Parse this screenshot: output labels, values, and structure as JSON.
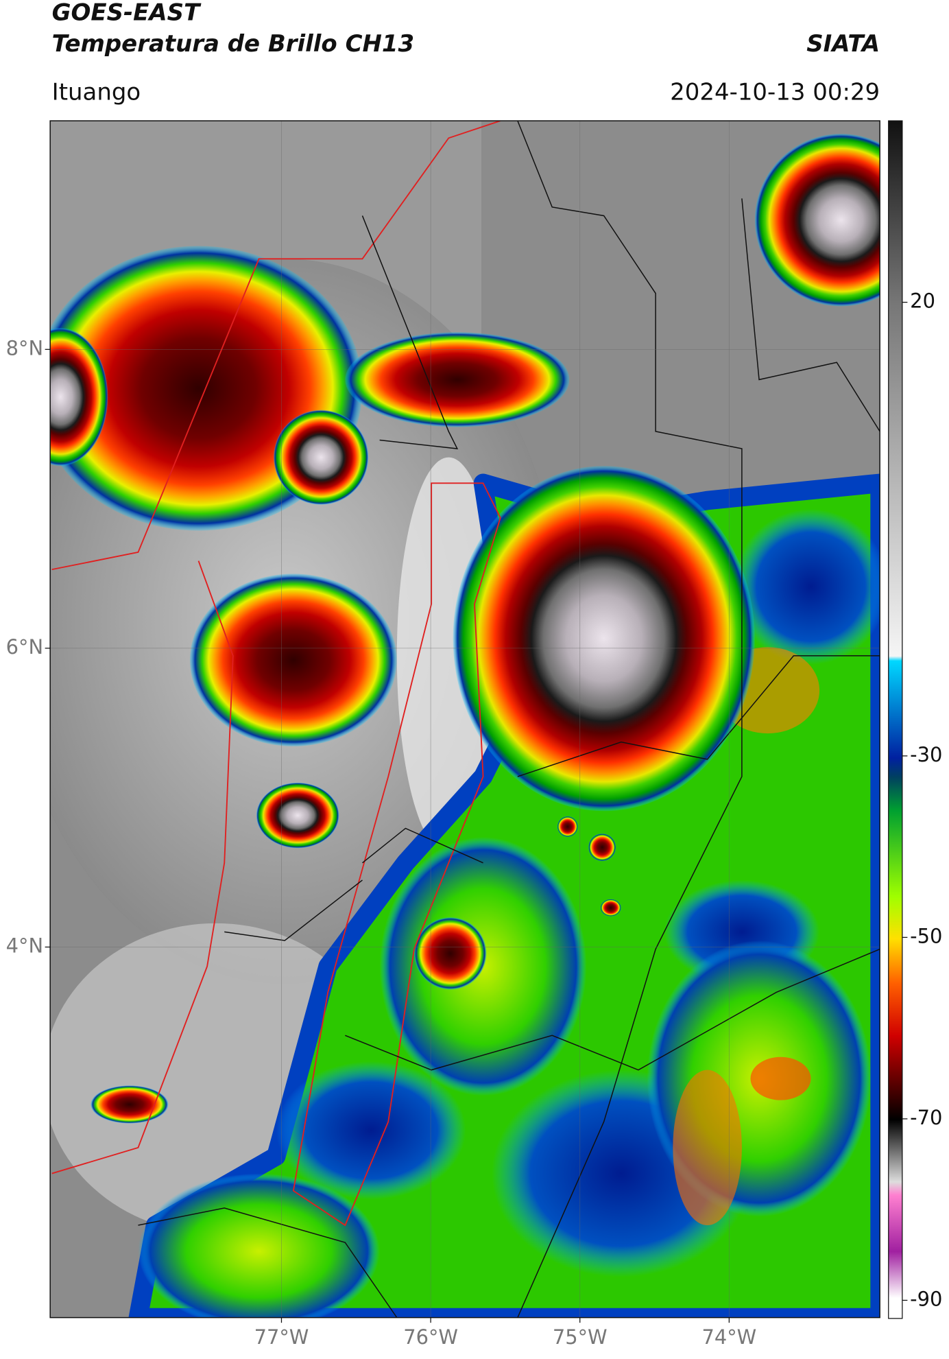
{
  "header": {
    "title": "GOES-EAST",
    "subtitle": "Temperatura de Brillo CH13",
    "brand": "SIATA",
    "location": "Ituango",
    "datetime": "2024-10-13 00:29"
  },
  "map": {
    "xlim": [
      -78.55,
      -72.99
    ],
    "ylim": [
      1.52,
      9.53
    ],
    "xticks": [
      {
        "value": -77,
        "label": "77°W"
      },
      {
        "value": -76,
        "label": "76°W"
      },
      {
        "value": -75,
        "label": "75°W"
      },
      {
        "value": -74,
        "label": "74°W"
      }
    ],
    "yticks": [
      {
        "value": 8,
        "label": "8°N"
      },
      {
        "value": 6,
        "label": "6°N"
      },
      {
        "value": 4,
        "label": "4°N"
      }
    ],
    "grid": true
  },
  "colorbar": {
    "lim": [
      -92,
      40
    ],
    "ticks": [
      20,
      -30,
      -50,
      -70,
      -90
    ]
  }
}
